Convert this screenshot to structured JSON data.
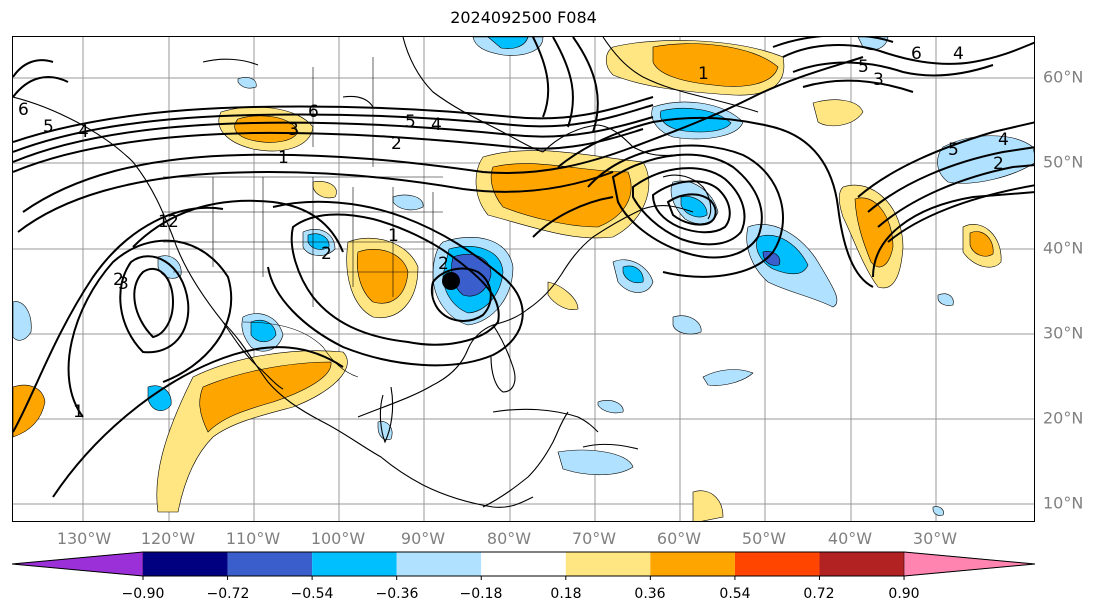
{
  "title": "2024092500 F084",
  "lon_labels": [
    "130°W",
    "120°W",
    "110°W",
    "100°W",
    "90°W",
    "80°W",
    "70°W",
    "60°W",
    "50°W",
    "40°W",
    "30°W"
  ],
  "lat_labels": [
    "60°N",
    "50°N",
    "40°N",
    "30°N",
    "20°N",
    "10°N"
  ],
  "colorbar": {
    "ticks": [
      "−0.90",
      "−0.72",
      "−0.54",
      "−0.36",
      "−0.18",
      "0.18",
      "0.36",
      "0.54",
      "0.72",
      "0.90"
    ],
    "colors": [
      "#9b30d9",
      "#000080",
      "#3a5fcd",
      "#00bfff",
      "#b0e2ff",
      "#ffffff",
      "#ffe682",
      "#ffa500",
      "#ff4500",
      "#b22222",
      "#ff85b0"
    ]
  },
  "contour_labels": [
    "6",
    "5",
    "4",
    "3",
    "2",
    "1",
    "6",
    "3",
    "5",
    "4",
    "2",
    "1",
    "2",
    "3",
    "1",
    "2",
    "1",
    "3",
    "5",
    "6",
    "4",
    "4",
    "5",
    "2",
    "1",
    "2"
  ],
  "marker": "storm-center",
  "shading_colors": {
    "neg_light": "#b0e2ff",
    "neg_mid": "#00bfff",
    "neg_strong": "#3a5fcd",
    "pos_light": "#ffe682",
    "pos_mid": "#ffa500"
  }
}
